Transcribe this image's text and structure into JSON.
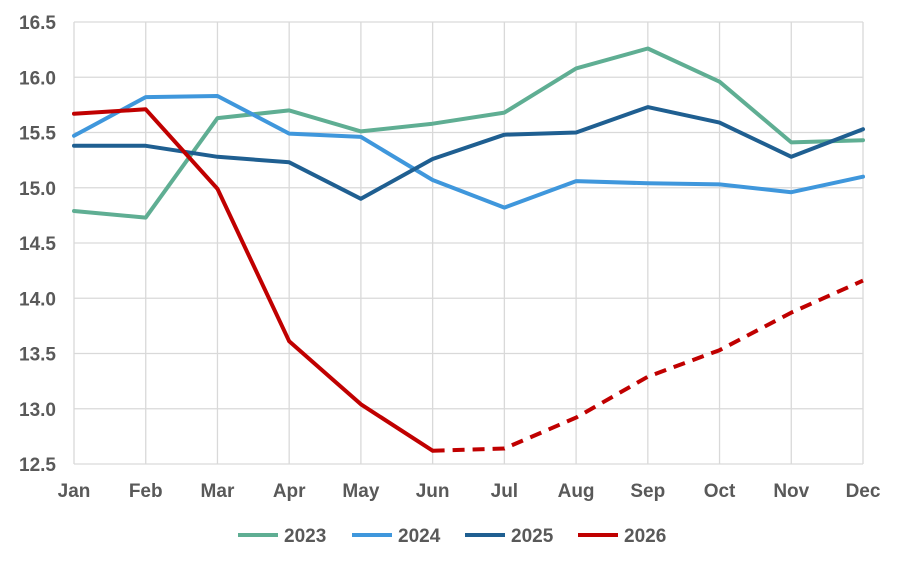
{
  "chart_data": {
    "type": "line",
    "categories": [
      "Jan",
      "Feb",
      "Mar",
      "Apr",
      "May",
      "Jun",
      "Jul",
      "Aug",
      "Sep",
      "Oct",
      "Nov",
      "Dec"
    ],
    "ylim": [
      12.5,
      16.5
    ],
    "yticks": [
      "16.5",
      "16.0",
      "15.5",
      "15.0",
      "14.5",
      "14.0",
      "13.5",
      "13.0",
      "12.5"
    ],
    "grid": true,
    "legend_position": "bottom",
    "series": [
      {
        "name": "2023",
        "color": "#5fae93",
        "values": [
          14.79,
          14.73,
          15.63,
          15.7,
          15.51,
          15.58,
          15.68,
          16.08,
          16.26,
          15.96,
          15.41,
          15.43
        ]
      },
      {
        "name": "2024",
        "color": "#3f97dc",
        "values": [
          15.47,
          15.82,
          15.83,
          15.49,
          15.46,
          15.07,
          14.82,
          15.06,
          15.04,
          15.03,
          14.96,
          15.1
        ]
      },
      {
        "name": "2025",
        "color": "#1f5f91",
        "values": [
          15.38,
          15.38,
          15.28,
          15.23,
          14.9,
          15.26,
          15.48,
          15.5,
          15.73,
          15.59,
          15.28,
          15.53
        ]
      },
      {
        "name": "2026",
        "color": "#c00000",
        "values": [
          15.67,
          15.71,
          14.99,
          13.61,
          13.04,
          12.62,
          12.64,
          12.92,
          13.29,
          13.53,
          13.87,
          14.16
        ],
        "actual_through": "Jun",
        "forecast_from": "Jun",
        "forecast_style": "dashed"
      }
    ]
  }
}
